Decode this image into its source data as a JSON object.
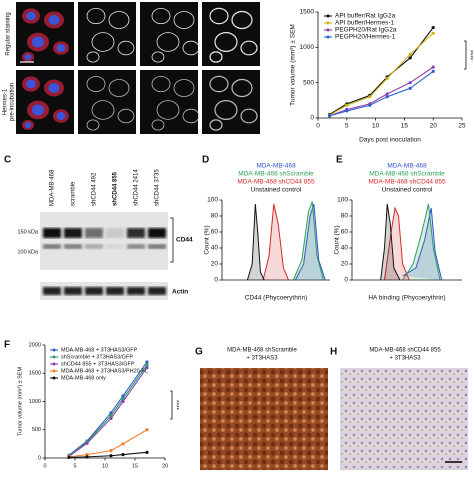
{
  "figure": {
    "panel_a": {
      "row_labels": [
        [
          "Regular staining"
        ],
        [
          "Hermes-1",
          "pre-incubation"
        ]
      ]
    },
    "panel_c": {
      "label": "C",
      "lanes": [
        {
          "label": "MDA-MB-468",
          "bold": false
        },
        {
          "label": "scramble",
          "bold": false
        },
        {
          "label": "shCD44 492",
          "bold": false
        },
        {
          "label": "shCD44 855",
          "bold": true
        },
        {
          "label": "shCD44 2414",
          "bold": false
        },
        {
          "label": "shCD44 3735",
          "bold": false
        }
      ],
      "markers": [
        "150 kDa",
        "100 kDa"
      ],
      "bands": [
        "CD44",
        "Actin"
      ]
    },
    "panel_g": {
      "label": "G",
      "title": [
        "MDA-MB-468 shScramble",
        "+ 3T3HAS3"
      ]
    },
    "panel_h": {
      "label": "H",
      "title": [
        "MDA-MB-468 shCD44 855",
        "+ 3T3HAS3"
      ]
    }
  },
  "chart_data": [
    {
      "type": "line",
      "ylabel": "Tumor volume (mm³) ± SEM",
      "xlabel": "Days post inoculation",
      "x": [
        2,
        5,
        9,
        12,
        16,
        20
      ],
      "xlim": [
        0,
        25
      ],
      "xticks": [
        0,
        5,
        10,
        15,
        20,
        25
      ],
      "ylim": [
        0,
        1500
      ],
      "yticks": [
        0,
        500,
        1000,
        1500
      ],
      "legend": "upper left",
      "annotation": "****",
      "series": [
        {
          "name": "API buffer/Rat IgG2a",
          "color": "#111111",
          "values": [
            50,
            200,
            320,
            580,
            850,
            1280
          ]
        },
        {
          "name": "API buffer/Hermes-1",
          "color": "#c9b317",
          "values": [
            40,
            180,
            300,
            560,
            900,
            1200
          ]
        },
        {
          "name": "PEGPH20/Rat IgG2a",
          "color": "#8b3fb0",
          "values": [
            30,
            120,
            200,
            340,
            500,
            720
          ]
        },
        {
          "name": "PEGPH20/Hermes-1",
          "color": "#2f5fd0",
          "values": [
            30,
            100,
            180,
            300,
            420,
            660
          ]
        }
      ]
    },
    {
      "type": "histogram",
      "panel": "D",
      "ylabel": "Count (%)",
      "xlabel": "CD44 (Phycoerythrin)",
      "log_x": true,
      "xlim": [
        10,
        1000000
      ],
      "ylim": [
        0,
        100
      ],
      "yticks": [
        0,
        20,
        40,
        60,
        80,
        100
      ],
      "legend": "above",
      "series": [
        {
          "name": "MDA-MB-468",
          "color": "#2f4fd0",
          "x": [
            25000,
            60000,
            120000,
            180000,
            300000,
            600000
          ],
          "values": [
            0,
            20,
            80,
            95,
            25,
            0
          ]
        },
        {
          "name": "MDA-MB-468 shScramble",
          "color": "#2e9e5b",
          "x": [
            20000,
            50000,
            100000,
            150000,
            250000,
            500000
          ],
          "values": [
            0,
            25,
            85,
            98,
            30,
            0
          ]
        },
        {
          "name": "MDA-MB-468 shCD44 855",
          "color": "#d42a2a",
          "x": [
            800,
            1500,
            2500,
            4000,
            7000,
            12000
          ],
          "values": [
            0,
            30,
            95,
            70,
            15,
            0
          ]
        },
        {
          "name": "Unstained control",
          "color": "#111111",
          "x": [
            150,
            250,
            350,
            450,
            600,
            900
          ],
          "values": [
            0,
            20,
            95,
            60,
            10,
            0
          ]
        }
      ]
    },
    {
      "type": "histogram",
      "panel": "E",
      "ylabel": "Count (%)",
      "xlabel": "HA binding (Phycoerythrin)",
      "log_x": true,
      "xlim": [
        10,
        1000000
      ],
      "ylim": [
        0,
        100
      ],
      "yticks": [
        0,
        20,
        40,
        60,
        80,
        100
      ],
      "legend": "above",
      "series": [
        {
          "name": "MDA-MB-468",
          "color": "#2f4fd0",
          "x": [
            2000,
            8000,
            20000,
            40000,
            60000,
            120000
          ],
          "values": [
            5,
            15,
            50,
            90,
            35,
            0
          ]
        },
        {
          "name": "MDA-MB-468 shScramble",
          "color": "#2e9e5b",
          "x": [
            2000,
            6000,
            15000,
            30000,
            50000,
            100000
          ],
          "values": [
            0,
            20,
            60,
            95,
            40,
            0
          ]
        },
        {
          "name": "MDA-MB-468 shCD44 855",
          "color": "#d42a2a",
          "x": [
            300,
            600,
            900,
            1300,
            2000,
            4000
          ],
          "values": [
            0,
            60,
            90,
            80,
            20,
            0
          ]
        },
        {
          "name": "Unstained control",
          "color": "#111111",
          "x": [
            200,
            300,
            400,
            550,
            800,
            1500
          ],
          "values": [
            0,
            40,
            95,
            70,
            15,
            0
          ]
        }
      ]
    },
    {
      "type": "line",
      "panel": "F",
      "ylabel": "Tumor volume (mm³) ± SEM",
      "x": [
        4,
        7,
        11,
        13,
        17
      ],
      "xlim": [
        0,
        20
      ],
      "xticks": [
        0,
        5,
        10,
        15,
        20
      ],
      "ylim": [
        0,
        2000
      ],
      "yticks": [
        0,
        500,
        1000,
        1500,
        2000
      ],
      "legend": "upper left",
      "annotation": "****",
      "series": [
        {
          "name": "MDA-MB-468 + 3T3HAS3/GFP",
          "color": "#2f5fd0",
          "values": [
            50,
            300,
            800,
            1100,
            1700
          ]
        },
        {
          "name": "shScramble + 3T3HAS3/GFP",
          "color": "#2e9e5b",
          "values": [
            40,
            280,
            750,
            1050,
            1650
          ]
        },
        {
          "name": "shCD44 855 + 3T3HAS3/GFP",
          "color": "#8b3fb0",
          "values": [
            30,
            260,
            700,
            1000,
            1600
          ]
        },
        {
          "name": "MDA-MB-468 + 3T3HAS3/PH20-FL",
          "color": "#f07f2a",
          "values": [
            20,
            60,
            130,
            250,
            500
          ]
        },
        {
          "name": "MDA-MB-468 only",
          "color": "#111111",
          "values": [
            10,
            20,
            40,
            60,
            100
          ]
        }
      ]
    }
  ]
}
